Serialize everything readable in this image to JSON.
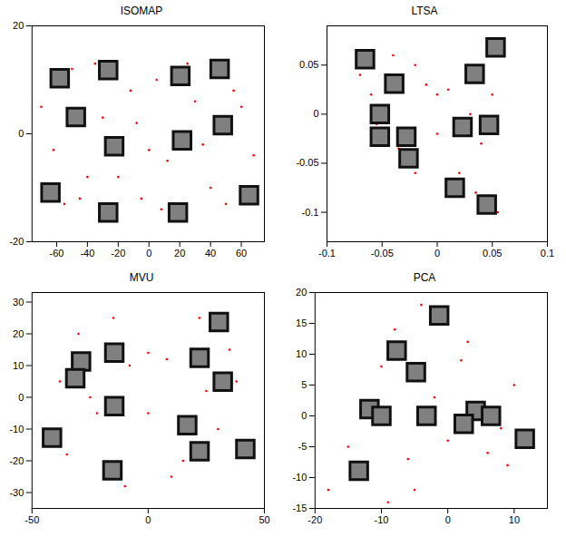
{
  "chart_data": [
    {
      "type": "scatter",
      "title": "ISOMAP",
      "grid": false,
      "xlim": [
        -76,
        75
      ],
      "ylim": [
        -20,
        20
      ],
      "xticks": [
        -60,
        -40,
        -20,
        0,
        20,
        40,
        60
      ],
      "yticks": [
        -20,
        0,
        20
      ],
      "series": [
        {
          "color": "#ff0000",
          "marker": "dot",
          "x": [
            -70,
            -62,
            -50,
            -40,
            -30,
            -12,
            -5,
            5,
            12,
            30,
            40,
            55,
            68,
            -55,
            -35,
            -8,
            8,
            35,
            60,
            -20,
            25,
            0,
            -45,
            50
          ],
          "y": [
            5,
            -3,
            12,
            -8,
            3,
            8,
            -12,
            10,
            -5,
            6,
            -10,
            8,
            -4,
            -13,
            13,
            2,
            -14,
            -2,
            5,
            -8,
            13,
            -3,
            -12,
            -13
          ]
        },
        {
          "color": "#808080",
          "marker": "square",
          "x": [
            -58,
            -47.5,
            -26.5,
            -22.6,
            20.4,
            45.9,
            48,
            21.5,
            -64,
            -26.5,
            18.8,
            65
          ],
          "y": [
            10.3,
            3.1,
            11.8,
            -2.3,
            10.7,
            12,
            1.6,
            -1.2,
            -10.9,
            -14.6,
            -14.6,
            -11.4
          ]
        }
      ]
    },
    {
      "type": "scatter",
      "title": "LTSA",
      "grid": false,
      "xlim": [
        -0.1,
        0.1
      ],
      "ylim": [
        -0.13,
        0.09
      ],
      "xticks": [
        -0.1,
        -0.05,
        0,
        0.05,
        0.1
      ],
      "yticks": [
        -0.1,
        -0.05,
        0,
        0.05
      ],
      "series": [
        {
          "color": "#ff0000",
          "marker": "dot",
          "x": [
            -0.07,
            -0.06,
            -0.05,
            -0.04,
            -0.03,
            -0.02,
            -0.01,
            0,
            0.01,
            0.02,
            0.03,
            0.04,
            0.05,
            0.06,
            -0.055,
            -0.035,
            0.035,
            0.055,
            -0.02,
            0
          ],
          "y": [
            0.04,
            0.02,
            -0.02,
            0.06,
            -0.05,
            0.05,
            0.03,
            0.02,
            0.025,
            -0.06,
            0,
            -0.03,
            0.02,
            0.06,
            -0.01,
            -0.035,
            -0.08,
            -0.1,
            -0.06,
            -0.02
          ]
        },
        {
          "color": "#808080",
          "marker": "square",
          "x": [
            -0.0655,
            -0.039,
            0.053,
            0.034,
            -0.052,
            -0.052,
            -0.028,
            -0.026,
            0.023,
            0.047,
            0.016,
            0.045
          ],
          "y": [
            0.056,
            0.031,
            0.068,
            0.041,
            0,
            -0.023,
            -0.023,
            -0.045,
            -0.013,
            -0.011,
            -0.075,
            -0.092
          ]
        }
      ]
    },
    {
      "type": "scatter",
      "title": "MVU",
      "grid": false,
      "xlim": [
        -50,
        50
      ],
      "ylim": [
        -35,
        33
      ],
      "xticks": [
        -50,
        0,
        50
      ],
      "yticks": [
        -30,
        -20,
        -10,
        0,
        10,
        20,
        30
      ],
      "series": [
        {
          "color": "#ff0000",
          "marker": "dot",
          "x": [
            -45,
            -38,
            -30,
            -22,
            -15,
            -8,
            0,
            8,
            15,
            22,
            30,
            38,
            45,
            -35,
            -10,
            10,
            35,
            -25,
            25,
            0
          ],
          "y": [
            -10,
            5,
            20,
            -5,
            25,
            10,
            14,
            12,
            -20,
            25,
            -10,
            5,
            -15,
            -18,
            -28,
            -25,
            15,
            0,
            2,
            -5
          ]
        },
        {
          "color": "#808080",
          "marker": "square",
          "x": [
            30.4,
            -28.9,
            -31.4,
            -14.6,
            22.1,
            32.1,
            -14.6,
            16.8,
            22.1,
            -41.4,
            -15.4,
            41.8
          ],
          "y": [
            23.7,
            11.3,
            6,
            14.1,
            12.4,
            4.9,
            -2.8,
            -8.8,
            -17,
            -12.7,
            -23,
            -16.3
          ]
        }
      ]
    },
    {
      "type": "scatter",
      "title": "PCA",
      "grid": false,
      "xlim": [
        -20,
        15
      ],
      "ylim": [
        -15,
        20
      ],
      "xticks": [
        -20,
        -10,
        0,
        10
      ],
      "yticks": [
        -15,
        -10,
        -5,
        0,
        5,
        10,
        15,
        20
      ],
      "series": [
        {
          "color": "#ff0000",
          "marker": "dot",
          "x": [
            -18,
            -15,
            -12,
            -10,
            -8,
            -6,
            -4,
            -2,
            0,
            2,
            4,
            6,
            8,
            10,
            12,
            -14,
            -5,
            3,
            9,
            -9
          ],
          "y": [
            -12,
            -5,
            2,
            8,
            14,
            -7,
            18,
            3,
            -4,
            9,
            0,
            -6,
            -2,
            5,
            -5,
            -10,
            -12,
            12,
            -8,
            -14
          ]
        },
        {
          "color": "#808080",
          "marker": "square",
          "x": [
            -1.3,
            -7.7,
            -4.8,
            -11.8,
            -10,
            -3.2,
            4.2,
            6.5,
            2.4,
            11.6,
            -13.4
          ],
          "y": [
            16.3,
            10.6,
            7.1,
            1.1,
            0,
            0,
            0.8,
            0,
            -1.3,
            -3.7,
            -8.9
          ]
        }
      ]
    }
  ]
}
